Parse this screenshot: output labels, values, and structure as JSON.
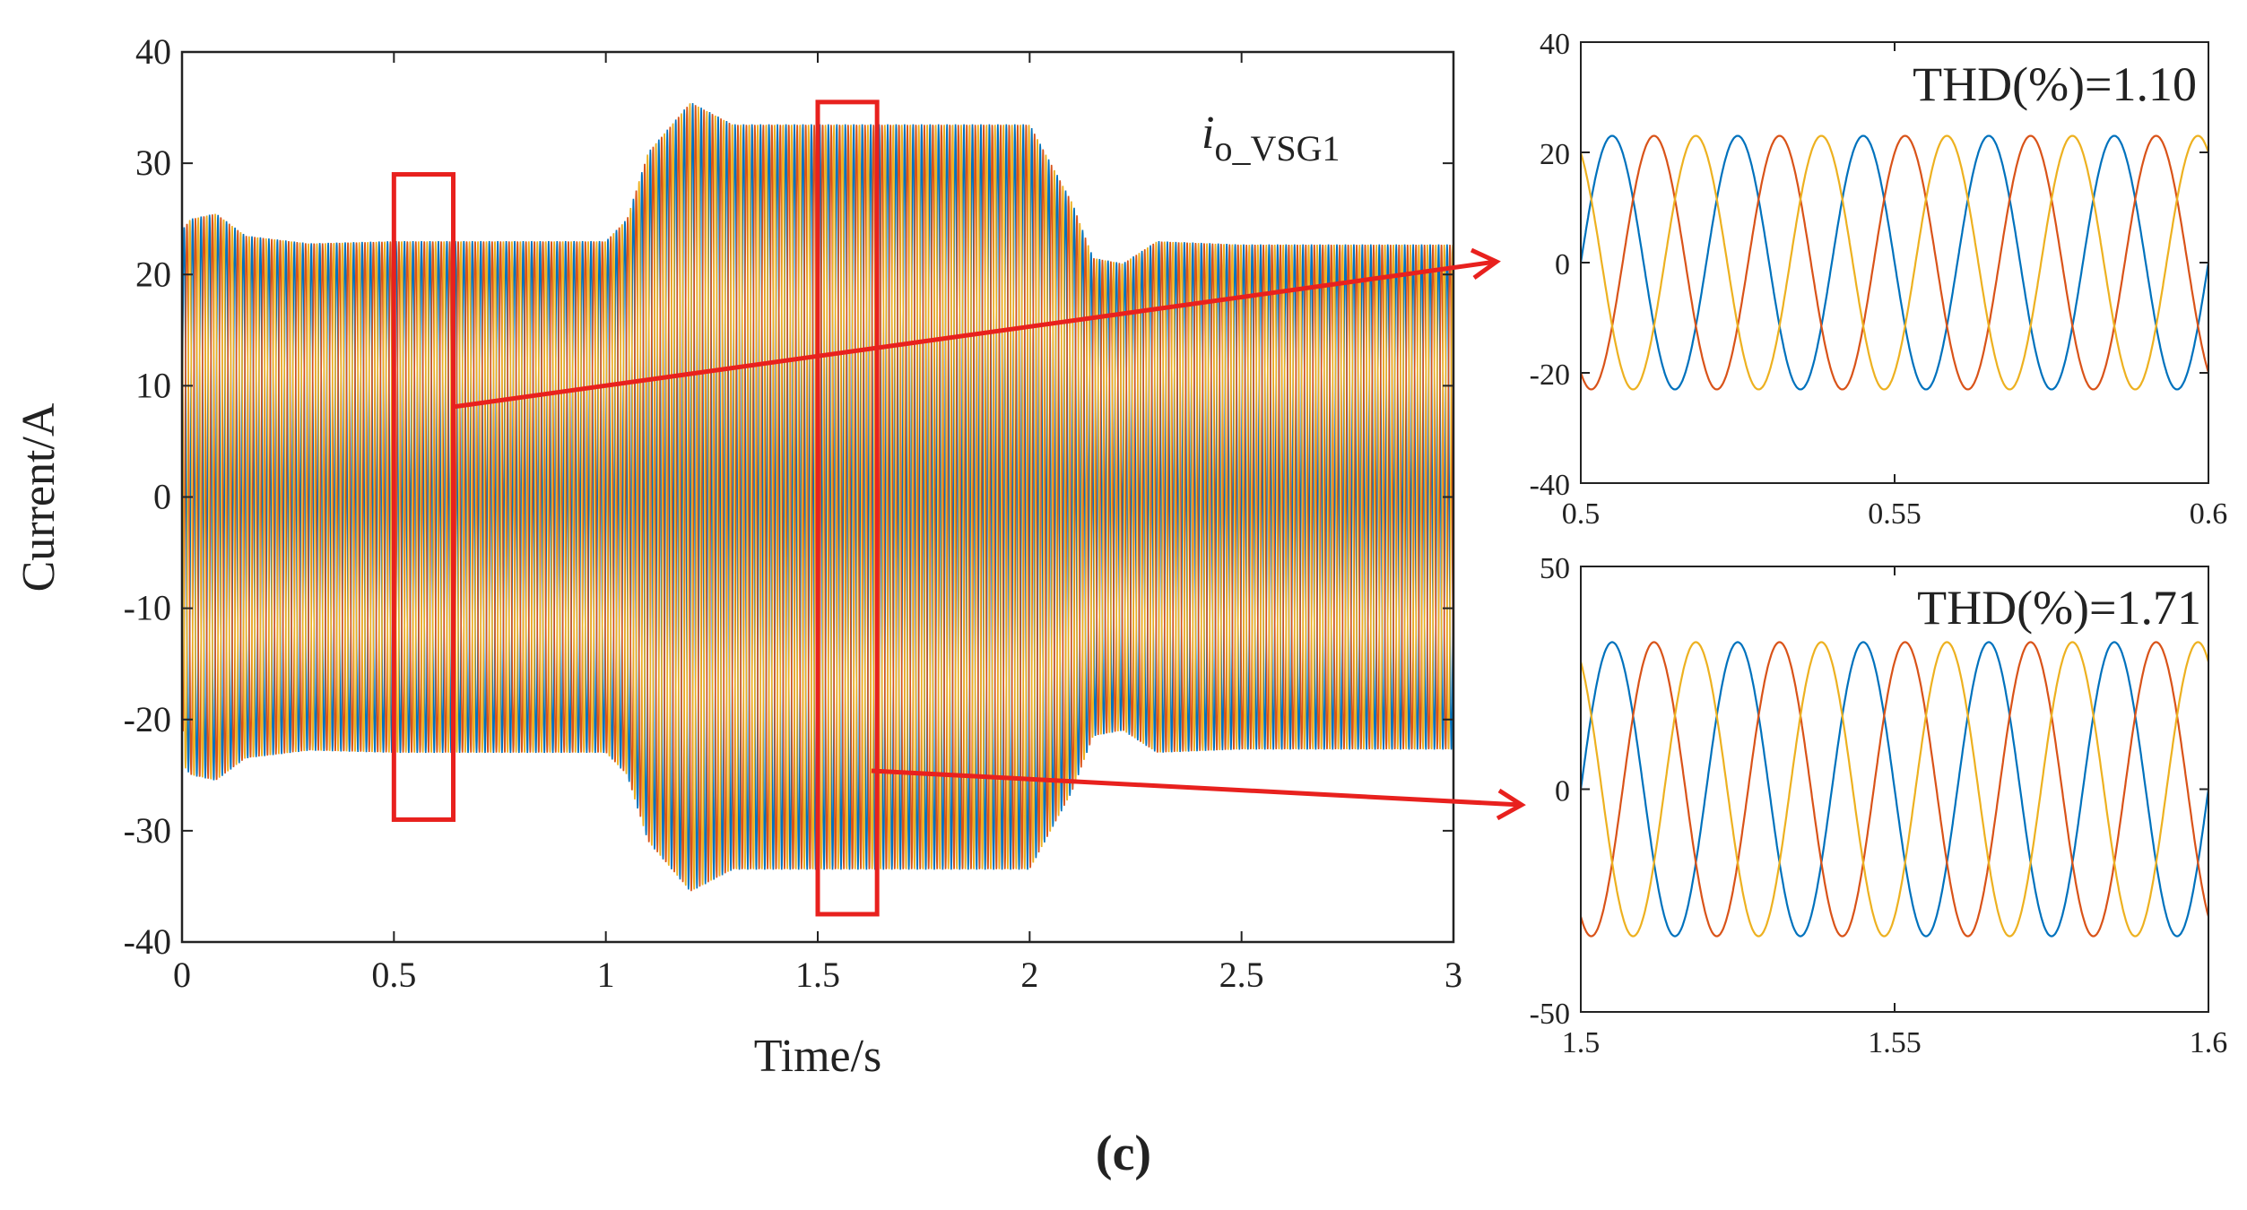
{
  "figure": {
    "caption": "(c)",
    "colors": {
      "phase_a": "#0072BD",
      "phase_b": "#D95319",
      "phase_c": "#EDB120",
      "highlight": "#E8211E",
      "axis": "#222222"
    }
  },
  "chart_data": [
    {
      "id": "main",
      "type": "line",
      "title": "",
      "annotation": {
        "symbol": "i",
        "subscript": "o_VSG1"
      },
      "xlabel": "Time/s",
      "ylabel": "Current/A",
      "xlim": [
        0,
        3
      ],
      "ylim": [
        -40,
        40
      ],
      "xticks": [
        0,
        0.5,
        1,
        1.5,
        2,
        2.5,
        3
      ],
      "xtick_labels": [
        "0",
        "0.5",
        "1",
        "1.5",
        "2",
        "2.5",
        "3"
      ],
      "yticks": [
        40,
        30,
        20,
        10,
        0,
        -10,
        -20,
        -30,
        -40
      ],
      "ytick_labels": [
        "40",
        "30",
        "20",
        "10",
        "0",
        "-10",
        "-20",
        "-30",
        "-40"
      ],
      "frequency_hz": 50,
      "series": [
        {
          "name": "phase a",
          "phase_deg": 0
        },
        {
          "name": "phase b",
          "phase_deg": -120
        },
        {
          "name": "phase c",
          "phase_deg": 120
        }
      ],
      "amplitude_envelope": {
        "t": [
          0,
          0.02,
          0.08,
          0.15,
          0.3,
          0.5,
          0.8,
          1.0,
          1.05,
          1.1,
          1.2,
          1.3,
          1.5,
          1.8,
          2.0,
          2.05,
          2.1,
          2.15,
          2.22,
          2.3,
          2.5,
          2.8,
          3.0
        ],
        "amp": [
          24,
          25,
          25.5,
          23.5,
          22.8,
          23,
          23,
          23,
          25,
          31,
          35.5,
          33.5,
          33.5,
          33.5,
          33.5,
          30,
          26.5,
          21.5,
          21,
          23,
          22.7,
          22.7,
          22.7
        ]
      },
      "zoom_boxes": [
        {
          "t": [
            0.5,
            0.64
          ],
          "i": [
            -29,
            29
          ]
        },
        {
          "t": [
            1.5,
            1.64
          ],
          "i": [
            -37.5,
            35.5
          ]
        }
      ]
    },
    {
      "id": "zoom-top",
      "type": "line",
      "title": "THD(%)=1.10",
      "xlim": [
        0.5,
        0.6
      ],
      "ylim": [
        -40,
        40
      ],
      "xticks": [
        0.5,
        0.55,
        0.6
      ],
      "xtick_labels": [
        "0.5",
        "0.55",
        "0.6"
      ],
      "yticks": [
        40,
        20,
        0,
        -20,
        -40
      ],
      "ytick_labels": [
        "40",
        "20",
        "0",
        "-20",
        "-40"
      ],
      "amplitude": 23,
      "frequency_hz": 50,
      "series": [
        {
          "name": "phase a",
          "phase_deg": 0
        },
        {
          "name": "phase b",
          "phase_deg": -120
        },
        {
          "name": "phase c",
          "phase_deg": 120
        }
      ]
    },
    {
      "id": "zoom-bottom",
      "type": "line",
      "title": "THD(%)=1.71",
      "xlim": [
        1.5,
        1.6
      ],
      "ylim": [
        -50,
        50
      ],
      "xticks": [
        1.5,
        1.55,
        1.6
      ],
      "xtick_labels": [
        "1.5",
        "1.55",
        "1.6"
      ],
      "yticks": [
        50,
        0,
        -50
      ],
      "ytick_labels": [
        "50",
        "0",
        "-50"
      ],
      "amplitude": 33,
      "frequency_hz": 50,
      "series": [
        {
          "name": "phase a",
          "phase_deg": 0
        },
        {
          "name": "phase b",
          "phase_deg": -120
        },
        {
          "name": "phase c",
          "phase_deg": 120
        }
      ]
    }
  ]
}
